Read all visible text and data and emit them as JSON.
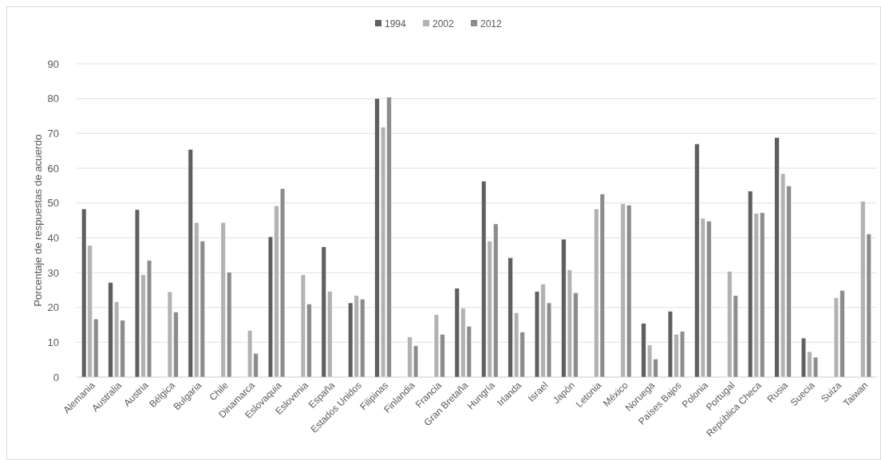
{
  "chart_data": {
    "type": "bar",
    "ylabel": "Porcentaje de respuestas de  acuerdo",
    "categories": [
      "Alemania",
      "Australia",
      "Austria",
      "Bélgica",
      "Bulgaria",
      "Chile",
      "Dinamarca",
      "Eslovaquia",
      "Eslovenia",
      "España",
      "Estados Unidos",
      "Filipinas",
      "Finlandia",
      "Francia",
      "Gran Bretaña",
      "Hungría",
      "Irlanda",
      "Israel",
      "Japón",
      "Letonia",
      "México",
      "Noruega",
      "Países Bajos",
      "Polonia",
      "Portugal",
      "República Checa",
      "Rusia",
      "Suecia",
      "Suiza",
      "Taiwan"
    ],
    "series": [
      {
        "name": "1994",
        "color": "#5f5f5f",
        "values": [
          48.3,
          27.2,
          48.1,
          null,
          65.4,
          null,
          null,
          40.3,
          null,
          37.4,
          21.3,
          80,
          null,
          null,
          25.5,
          56.3,
          34.3,
          24.6,
          39.6,
          null,
          null,
          15.4,
          18.9,
          67,
          null,
          53.4,
          68.8,
          11.2,
          null,
          null
        ]
      },
      {
        "name": "2002",
        "color": "#b2b2b2",
        "values": [
          37.8,
          21.6,
          29.4,
          24.5,
          44.4,
          44.4,
          13.4,
          49.2,
          29.4,
          24.6,
          23.4,
          71.8,
          11.5,
          17.9,
          19.8,
          39.1,
          18.5,
          26.7,
          30.8,
          48.3,
          49.8,
          9.2,
          12.3,
          45.6,
          30.4,
          47,
          58.4,
          7.3,
          22.8,
          50.5
        ]
      },
      {
        "name": "2012",
        "color": "#8c8c8c",
        "values": [
          16.7,
          16.3,
          33.5,
          18.7,
          39.1,
          30.1,
          6.8,
          54.1,
          21,
          null,
          22.4,
          80.4,
          9,
          12.3,
          14.6,
          44,
          12.9,
          21.3,
          24.2,
          52.6,
          49.4,
          5.2,
          13.1,
          44.8,
          23.4,
          47.2,
          54.9,
          5.7,
          24.9,
          41.1
        ]
      }
    ],
    "ylim": [
      0,
      90
    ],
    "yticks": [
      0,
      10,
      20,
      30,
      40,
      50,
      60,
      70,
      80,
      90
    ],
    "grid": "y",
    "legend": "top"
  }
}
